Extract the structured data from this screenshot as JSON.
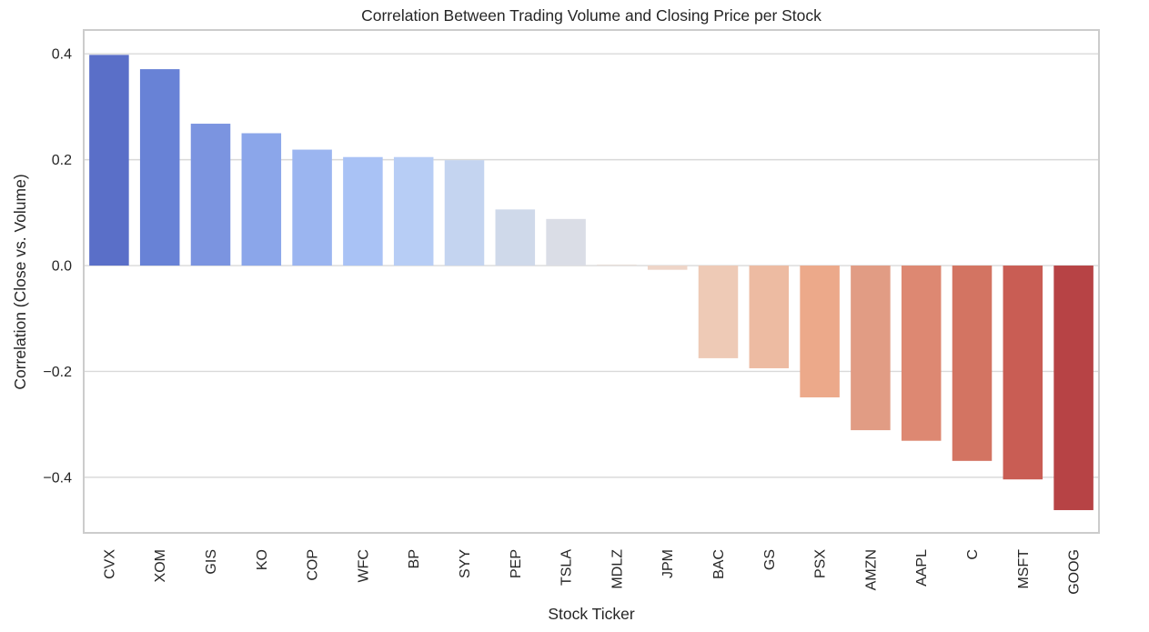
{
  "chart_data": {
    "type": "bar",
    "title": "Correlation Between Trading Volume and Closing Price per Stock",
    "xlabel": "Stock Ticker",
    "ylabel": "Correlation (Close vs. Volume)",
    "ylim": [
      -0.505,
      0.445
    ],
    "yticks": [
      -0.4,
      -0.2,
      0.0,
      0.2,
      0.4
    ],
    "ytick_labels": [
      "−0.4",
      "−0.2",
      "0.0",
      "0.2",
      "0.4"
    ],
    "grid": true,
    "legend": "none",
    "categories": [
      "CVX",
      "XOM",
      "GIS",
      "KO",
      "COP",
      "WFC",
      "BP",
      "SYY",
      "PEP",
      "TSLA",
      "MDLZ",
      "JPM",
      "BAC",
      "GS",
      "PSX",
      "AMZN",
      "AAPL",
      "C",
      "MSFT",
      "GOOG"
    ],
    "values": [
      0.398,
      0.371,
      0.268,
      0.25,
      0.219,
      0.205,
      0.205,
      0.199,
      0.106,
      0.088,
      0.002,
      -0.008,
      -0.175,
      -0.194,
      -0.249,
      -0.311,
      -0.331,
      -0.369,
      -0.404,
      -0.462
    ],
    "colors": [
      "#5a6fc8",
      "#6882d6",
      "#7b94e0",
      "#8ba6ea",
      "#9bb5f0",
      "#a9c2f5",
      "#b7cdf5",
      "#c4d4f0",
      "#cfd9ea",
      "#dadde6",
      "#e8dfda",
      "#eed5c8",
      "#eecab6",
      "#edbba2",
      "#eca98a",
      "#e19c84",
      "#dd8872",
      "#d37462",
      "#c95d54",
      "#b74345"
    ]
  }
}
